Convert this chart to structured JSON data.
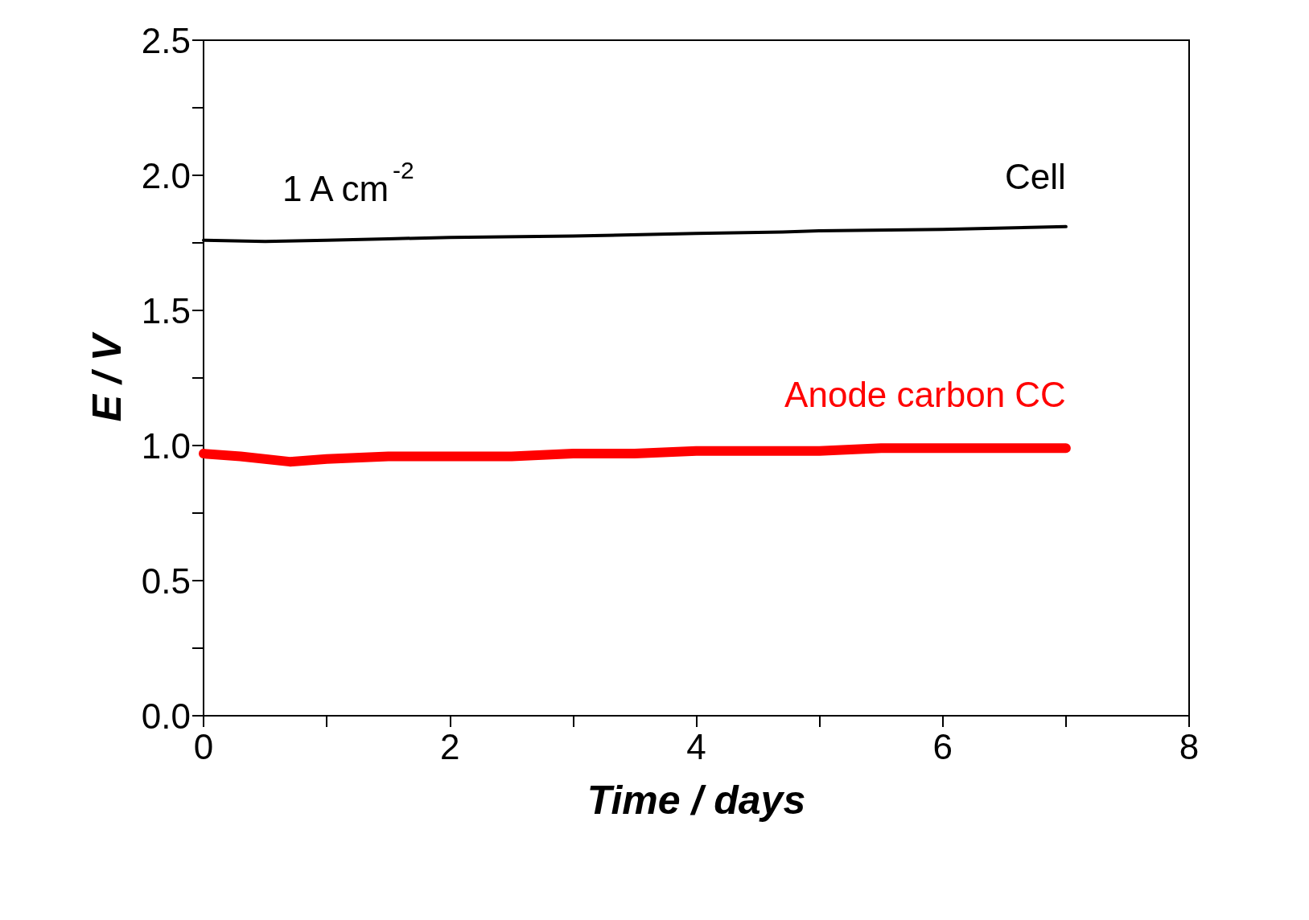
{
  "chart_data": {
    "type": "line",
    "xlabel": "Time / days",
    "ylabel": "E / V",
    "annotations": [
      "1 A cm$^{-2}$"
    ],
    "series": [
      {
        "name": "Cell",
        "color": "#000000",
        "x": [
          0,
          0.5,
          1,
          1.5,
          2,
          3,
          4,
          4.7,
          5,
          6,
          7
        ],
        "values": [
          1.76,
          1.755,
          1.76,
          1.765,
          1.77,
          1.775,
          1.785,
          1.79,
          1.795,
          1.8,
          1.81
        ]
      },
      {
        "name": "Anode carbon CC",
        "color": "#ff0000",
        "x": [
          0,
          0.3,
          0.7,
          1,
          1.5,
          2,
          2.5,
          3,
          3.5,
          4,
          4.5,
          5,
          5.5,
          6,
          6.5,
          7
        ],
        "values": [
          0.97,
          0.96,
          0.94,
          0.95,
          0.96,
          0.96,
          0.96,
          0.97,
          0.97,
          0.98,
          0.98,
          0.98,
          0.99,
          0.99,
          0.99,
          0.99
        ]
      }
    ],
    "xlim": [
      0,
      8
    ],
    "xticks": [
      0,
      {
        "value": 1,
        "label": null
      },
      2,
      {
        "value": 3,
        "label": null
      },
      4,
      {
        "value": 5,
        "label": null
      },
      6,
      {
        "value": 7,
        "label": null
      },
      8
    ],
    "ylim": [
      0,
      2.5
    ],
    "yticks": [
      {
        "value": 0,
        "label": "0.0"
      },
      {
        "value": 0.25,
        "label": null
      },
      {
        "value": 0.5,
        "label": "0.5"
      },
      {
        "value": 0.75,
        "label": null
      },
      {
        "value": 1,
        "label": "1.0"
      },
      {
        "value": 1.25,
        "label": null
      },
      {
        "value": 1.5,
        "label": "1.5"
      },
      {
        "value": 1.75,
        "label": null
      },
      {
        "value": 2,
        "label": "2.0"
      },
      {
        "value": 2.25,
        "label": null
      },
      {
        "value": 2.5,
        "label": "2.5"
      }
    ],
    "grid": false,
    "legend": false,
    "marker": "none",
    "line_style": "solid"
  }
}
